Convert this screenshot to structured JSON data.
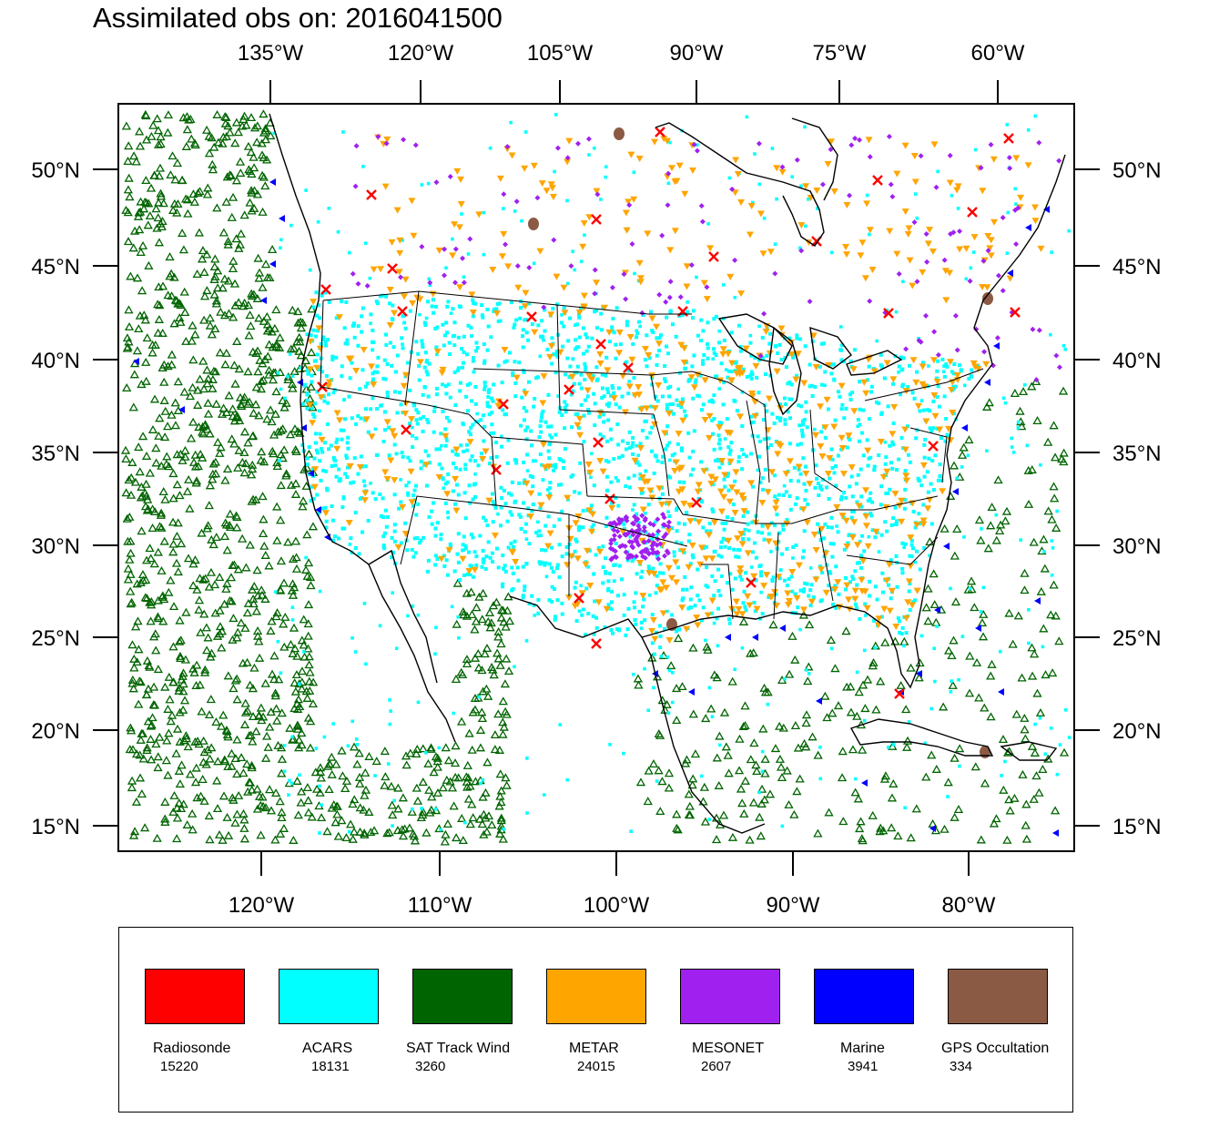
{
  "title": "Assimilated obs on: 2016041500",
  "map": {
    "top_lon_labels": [
      "135°W",
      "120°W",
      "105°W",
      "90°W",
      "75°W",
      "60°W"
    ],
    "bottom_lon_labels": [
      "120°W",
      "110°W",
      "100°W",
      "90°W",
      "80°W"
    ],
    "left_lat_labels": [
      "50°N",
      "45°N",
      "40°N",
      "35°N",
      "30°N",
      "25°N",
      "20°N",
      "15°N"
    ],
    "right_lat_labels": [
      "50°N",
      "45°N",
      "40°N",
      "35°N",
      "30°N",
      "25°N",
      "20°N",
      "15°N"
    ]
  },
  "legend": [
    {
      "name": "Radiosonde",
      "count": "15220",
      "color": "#ff0000"
    },
    {
      "name": "ACARS",
      "count": "18131",
      "color": "#00ffff"
    },
    {
      "name": "SAT Track Wind",
      "count": "3260",
      "color": "#006400"
    },
    {
      "name": "METAR",
      "count": "24015",
      "color": "#ffa500"
    },
    {
      "name": "MESONET",
      "count": "2607",
      "color": "#a020f0"
    },
    {
      "name": "Marine",
      "count": "3941",
      "color": "#0000ff"
    },
    {
      "name": "GPS Occultation",
      "count": "334",
      "color": "#8b5a44"
    }
  ]
}
